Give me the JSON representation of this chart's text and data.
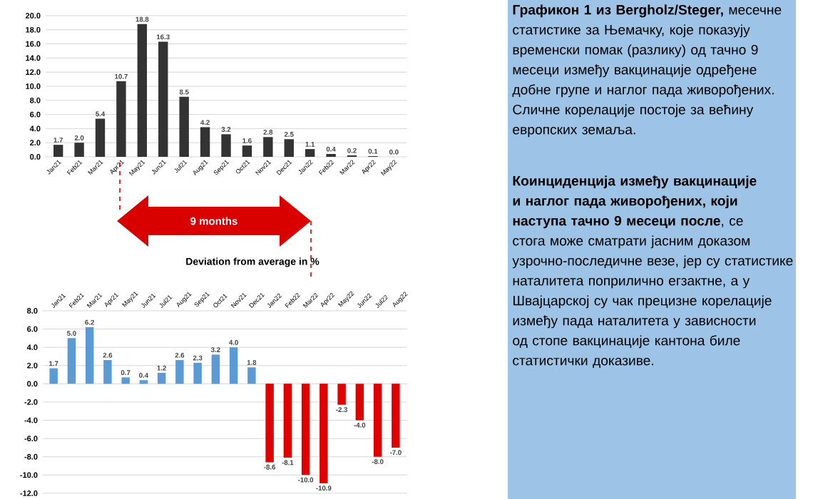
{
  "chart_data": [
    {
      "type": "bar",
      "categories": [
        "Jan21",
        "Feb21",
        "Mar21",
        "Apr21",
        "May21",
        "Jun21",
        "Jul21",
        "Aug21",
        "Sep21",
        "Oct21",
        "Nov21",
        "Dec21",
        "Jan22",
        "Feb22",
        "Mar22",
        "Apr22",
        "May22"
      ],
      "values": [
        1.7,
        2.0,
        5.4,
        10.7,
        18.8,
        16.3,
        8.5,
        4.2,
        3.2,
        1.6,
        2.8,
        2.5,
        1.1,
        0.4,
        0.2,
        0.1,
        0.0
      ],
      "value_labels": [
        "1.7",
        "2.0",
        "5.4",
        "10.7",
        "18.8",
        "16.3",
        "8.5",
        "4.2",
        "3.2",
        "1.6",
        "2.8",
        "2.5",
        "1.1",
        "0.4",
        "0.2",
        "0.1",
        "0.0"
      ],
      "color": "#333333",
      "grid": "y",
      "ylim": [
        0,
        20
      ],
      "yticks": [
        {
          "value": 0,
          "label": "0.0"
        },
        {
          "value": 2,
          "label": "2.0"
        },
        {
          "value": 4,
          "label": "4.0"
        },
        {
          "value": 6,
          "label": "6.0"
        },
        {
          "value": 8,
          "label": "8.0"
        },
        {
          "value": 10,
          "label": "10.0"
        },
        {
          "value": 12,
          "label": "12.0"
        },
        {
          "value": 14,
          "label": "14.0"
        },
        {
          "value": 16,
          "label": "16.0"
        },
        {
          "value": 18,
          "label": "18.0"
        },
        {
          "value": 20,
          "label": "20.0"
        }
      ]
    },
    {
      "type": "bar",
      "title": "Deviation from average in %",
      "annotations": [
        "9 months"
      ],
      "categories": [
        "Jan21",
        "Feb21",
        "Mar21",
        "Apr21",
        "May21",
        "Jun21",
        "Jul21",
        "Aug21",
        "Sep21",
        "Oct21",
        "Nov21",
        "Dec21",
        "Jan22",
        "Feb22",
        "Mar22",
        "Apr22",
        "May22",
        "Jun22",
        "Jul22",
        "Aug22"
      ],
      "values": [
        1.7,
        5.0,
        6.2,
        2.6,
        0.7,
        0.4,
        1.2,
        2.6,
        2.3,
        3.2,
        4.0,
        1.8,
        -8.6,
        -8.1,
        -10.0,
        -10.9,
        -2.3,
        -4.0,
        -8.0,
        -7.0
      ],
      "colors": [
        "#5b9bd5",
        "#5b9bd5",
        "#5b9bd5",
        "#5b9bd5",
        "#5b9bd5",
        "#5b9bd5",
        "#5b9bd5",
        "#5b9bd5",
        "#5b9bd5",
        "#5b9bd5",
        "#5b9bd5",
        "#5b9bd5",
        "#e00000",
        "#e00000",
        "#e00000",
        "#e00000",
        "#e00000",
        "#e00000",
        "#e00000",
        "#e00000"
      ],
      "value_labels": [
        "1.7",
        "5.0",
        "6.2",
        "2.6",
        "0.7",
        "0.4",
        "1.2",
        "2.6",
        "2.3",
        "3.2",
        "4.0",
        "1.8",
        "-8.6",
        "-8.1",
        "-10.0",
        "-10.9",
        "-2.3",
        "-4.0",
        "-8.0",
        "-7.0"
      ],
      "grid": "y",
      "ylim": [
        -12,
        8
      ],
      "yticks": [
        {
          "value": -12,
          "label": "-12.0"
        },
        {
          "value": -10,
          "label": "-10.0"
        },
        {
          "value": -8,
          "label": "-8.0"
        },
        {
          "value": -6,
          "label": "-6.0"
        },
        {
          "value": -4,
          "label": "-4.0"
        },
        {
          "value": -2,
          "label": "-2.0"
        },
        {
          "value": 0,
          "label": "0.0"
        },
        {
          "value": 2,
          "label": "2.0"
        },
        {
          "value": 4,
          "label": "4.0"
        },
        {
          "value": 6,
          "label": "6.0"
        },
        {
          "value": 8,
          "label": "8.0"
        }
      ]
    },
    {
      "type": "other",
      "annotations": [
        "**Графикон 1 из Bergholz/Steger,** месечне статистике за Њемачку, које показују временски помак (разлику) од тачно 9 месеци између вакцинације одређене добне групе и наглог пада живорођених. Сличне корелације постоје за већину европских земаља.",
        "**Коинциденција између вакцинације и наглог пада живорођених, који наступа тачно 9 месеци после**, се стога може сматрати јасним доказом узрочно-последичне везе, јер су статистике наталитета поприлично егзактне, а у Швајцарској су чак прецизне корелације између пада наталитета у зависности од стопе вакцинације кантона биле статистички доказиве."
      ]
    }
  ]
}
